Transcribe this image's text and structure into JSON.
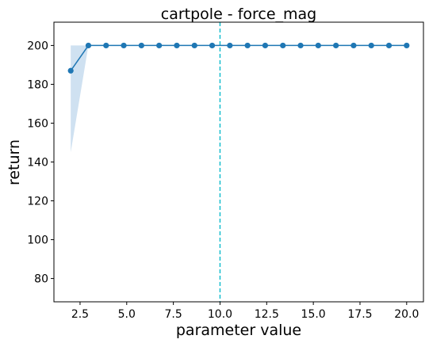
{
  "chart_data": {
    "type": "line",
    "title": "cartpole - force_mag",
    "xlabel": "parameter value",
    "ylabel": "return",
    "xlim": [
      1.1,
      20.9
    ],
    "ylim": [
      68,
      212
    ],
    "xticks": [
      2.5,
      5.0,
      7.5,
      10.0,
      12.5,
      15.0,
      17.5,
      20.0
    ],
    "xtick_labels": [
      "2.5",
      "5.0",
      "7.5",
      "10.0",
      "12.5",
      "15.0",
      "17.5",
      "20.0"
    ],
    "yticks": [
      80,
      100,
      120,
      140,
      160,
      180,
      200
    ],
    "ytick_labels": [
      "80",
      "100",
      "120",
      "140",
      "160",
      "180",
      "200"
    ],
    "grid": false,
    "series": [
      {
        "color": "#1f77b4",
        "marker": "circle",
        "x": [
          2.0,
          2.947,
          3.895,
          4.842,
          5.789,
          6.737,
          7.684,
          8.632,
          9.579,
          10.526,
          11.474,
          12.421,
          13.368,
          14.316,
          15.263,
          16.211,
          17.158,
          18.105,
          19.053,
          20.0
        ],
        "y": [
          187,
          200,
          200,
          200,
          200,
          200,
          200,
          200,
          200,
          200,
          200,
          200,
          200,
          200,
          200,
          200,
          200,
          200,
          200,
          200
        ],
        "band_lower": [
          145,
          200,
          200,
          200,
          200,
          200,
          200,
          200,
          200,
          200,
          200,
          200,
          200,
          200,
          200,
          200,
          200,
          200,
          200,
          200
        ],
        "band_upper": [
          200,
          200,
          200,
          200,
          200,
          200,
          200,
          200,
          200,
          200,
          200,
          200,
          200,
          200,
          200,
          200,
          200,
          200,
          200,
          200
        ],
        "band_color": "#cfe1f1"
      }
    ],
    "reference_line": {
      "x": 10.0,
      "color": "#17becf",
      "style": "dashed"
    }
  }
}
